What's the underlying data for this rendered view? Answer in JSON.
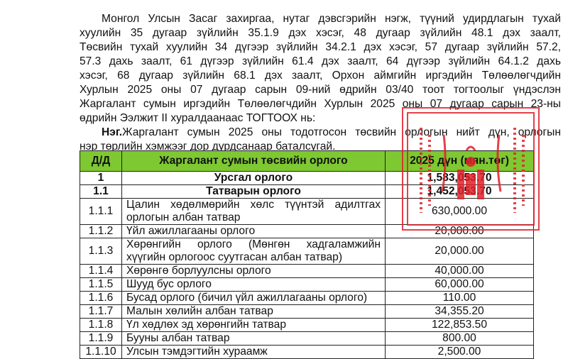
{
  "preamble_lines": [
    "Монгол Улсын Засаг захиргаа, нутаг дэвсгэрийн нэгж, түүний удирдлагын тухай",
    "хуулийн 35 дугаар зүйлийн 35.1.9 дэх хэсэг, 48 дугаар зүйлийн 48.1 дэх заалт,",
    "Төсвийн тухай хуулийн 34 дүгээр зүйлийн 34.2.1 дэх хэсэг, 57 дугаар зүйлийн 57.2,",
    "57.3 дахь заалт, 61 дүгээр зүйлийн 61.4 дэх заалт, 64 дүгээр зүйлийн 64.1.2 дахь",
    "хэсэг, 68 дугаар зүйлийн 68.1 дэх заалт, Орхон аймгийн иргэдийн Төлөөлөгчдийн",
    "Хурлын 2025 оны 07 дугаар сарын 09-ний  өдрийн 03/40 тоот тогтоолыг үндэслэн",
    "Жаргалант сумын иргэдийн Төлөөлөгчдийн Хурлын 2025 оны 07 дугаар сарын 23-ны",
    "өдрийн Ээлжит II хуралдаанаас ТОГТООХ нь:"
  ],
  "section": {
    "label": "Нэг.",
    "line1": "Жаргалант сумын 2025 оны тодотгосон төсвийн орлогын нийт дүн, орлогын",
    "line2": "нэр төрлийн хэмжээг дор дурдсанаар баталсугай."
  },
  "table": {
    "headers": [
      "Д/Д",
      "Жаргалант сумын төсвийн орлого",
      "2025 дүн (мян.төг)"
    ],
    "header_color": "#7ec832",
    "rows": [
      {
        "no": "1",
        "name": "Урсгал орлого",
        "amount": "1,583,053.70",
        "bold": true
      },
      {
        "no": "1.1",
        "name": "Татварын орлого",
        "amount": "1,452,053.70",
        "bold": true
      },
      {
        "no": "1.1.1",
        "name": "Цалин хөдөлмөрийн хөлс түүнтэй адилтгах орлогын албан татвар",
        "amount": "630,000.00"
      },
      {
        "no": "1.1.2",
        "name": "Үйл ажиллагааны орлого",
        "amount": "20,000.00"
      },
      {
        "no": "1.1.3",
        "name": "Хөрөнгийн орлого (Мөнгөн хадгаламжийн хүүгийн орлогоос суутгасан албан татвар)",
        "amount": "20,000.00"
      },
      {
        "no": "1.1.4",
        "name": "Хөрөнгө борлуулсны орлого",
        "amount": "40,000.00"
      },
      {
        "no": "1.1.5",
        "name": "Шууд бус орлого",
        "amount": "60,000.00"
      },
      {
        "no": "1.1.6",
        "name": "Бусад орлого (бичил үйл ажиллагааны орлого)",
        "amount": "110.00"
      },
      {
        "no": "1.1.7",
        "name": "Малын хөлийн албан татвар",
        "amount": "34,355.20"
      },
      {
        "no": "1.1.8",
        "name": "Үл хөдлөх эд хөрөнгийн татвар",
        "amount": "122,853.50"
      },
      {
        "no": "1.1.9",
        "name": "Бууны албан татвар",
        "amount": "800.00"
      },
      {
        "no": "1.1.10",
        "name": "Улсын тэмдэгтийн хураамж",
        "amount": "2,500.00"
      }
    ]
  },
  "stamp": {
    "color": "#e0202a",
    "icon": "official-seal-icon"
  }
}
